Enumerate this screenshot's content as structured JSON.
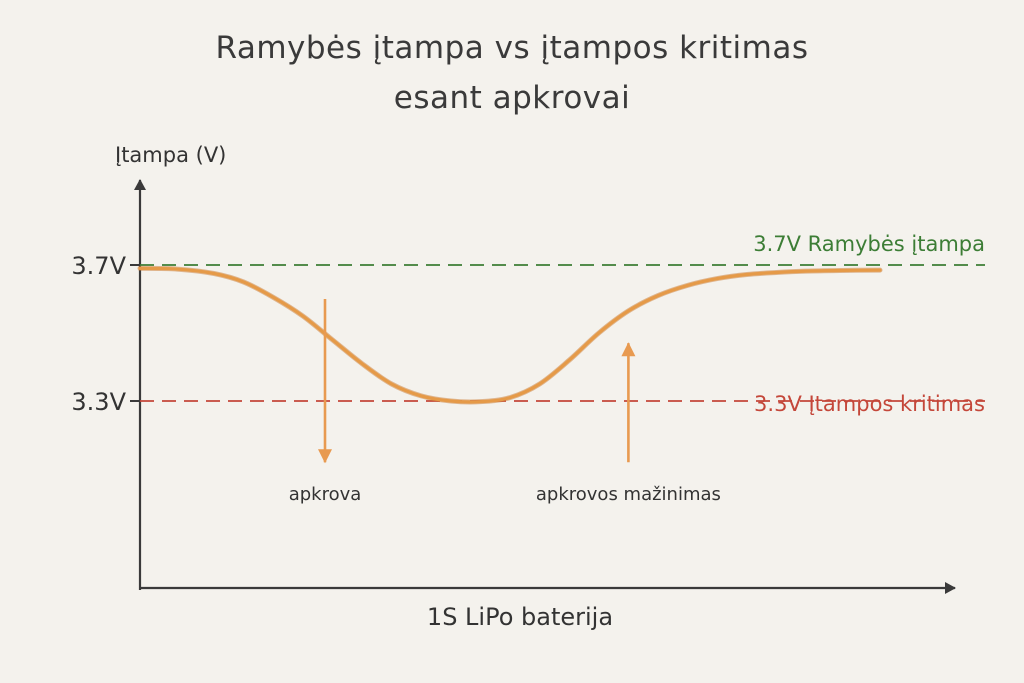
{
  "chart_data": {
    "type": "line",
    "title_lines": [
      "Ramybės įtampa vs įtampos kritimas",
      "esant apkrovai"
    ],
    "ylabel": "Įtampa (V)",
    "xlabel": "1S LiPo baterija",
    "y_tick_labels": [
      "3.7V",
      "3.3V"
    ],
    "y_tick_values": [
      3.7,
      3.3
    ],
    "ylim": [
      2.75,
      3.95
    ],
    "xlim": [
      0,
      100
    ],
    "grid": false,
    "reference_lines": [
      {
        "value": 3.7,
        "label": "3.7V  Ramybės įtampa",
        "color": "#3c7d35",
        "style": "dashed"
      },
      {
        "value": 3.3,
        "label": "3.3V  Įtampos kritimas",
        "color": "#c4473a",
        "style": "dashed"
      }
    ],
    "series": [
      {
        "color": "#e59a48",
        "x": [
          0,
          5,
          10,
          14,
          18,
          22,
          26,
          30,
          34,
          38,
          42,
          46,
          50,
          54,
          58,
          62,
          66,
          70,
          74,
          78,
          82,
          86,
          90,
          95,
          100
        ],
        "y": [
          3.69,
          3.688,
          3.675,
          3.65,
          3.605,
          3.55,
          3.48,
          3.41,
          3.35,
          3.315,
          3.3,
          3.298,
          3.31,
          3.35,
          3.42,
          3.5,
          3.565,
          3.61,
          3.64,
          3.66,
          3.672,
          3.678,
          3.682,
          3.684,
          3.685
        ]
      }
    ],
    "annotations": [
      {
        "text": "apkrova",
        "x": 25,
        "direction": "down",
        "arrow_from": 3.6,
        "arrow_to": 3.12
      },
      {
        "text": "apkrovos mažinimas",
        "x": 66,
        "direction": "up",
        "arrow_from": 3.12,
        "arrow_to": 3.47
      }
    ],
    "colors": {
      "axis": "#3a3a3a",
      "curve": "#e59a48",
      "arrow": "#e89a50"
    }
  }
}
